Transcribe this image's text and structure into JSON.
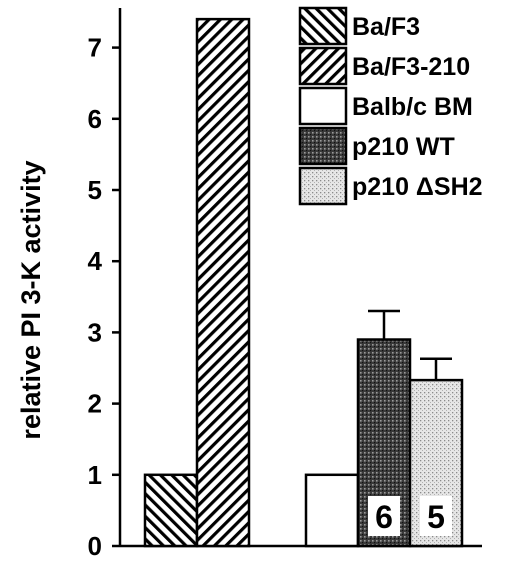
{
  "chart_data": {
    "type": "bar",
    "title": "",
    "xlabel": "",
    "ylabel": "relative PI 3-K activity",
    "ylim": [
      0,
      7.5
    ],
    "yticks": [
      "0",
      "1",
      "2",
      "3",
      "4",
      "5",
      "6",
      "7"
    ],
    "grid": false,
    "legend_position": "top-right",
    "series": [
      {
        "name": "Ba/F3",
        "group": 0,
        "value": 1.0,
        "pattern": "hatch-back",
        "n_label": "",
        "error": null
      },
      {
        "name": "Ba/F3-210",
        "group": 0,
        "value": 7.4,
        "pattern": "hatch-forward",
        "n_label": "",
        "error": null
      },
      {
        "name": "Balb/c BM",
        "group": 1,
        "value": 1.0,
        "pattern": "white",
        "n_label": "",
        "error": null
      },
      {
        "name": "p210 WT",
        "group": 1,
        "value": 2.9,
        "pattern": "dark-stipple",
        "n_label": "6",
        "error": 0.4
      },
      {
        "name": "p210 ΔSH2",
        "group": 1,
        "value": 2.33,
        "pattern": "light-stipple",
        "n_label": "5",
        "error": 0.3
      }
    ]
  }
}
